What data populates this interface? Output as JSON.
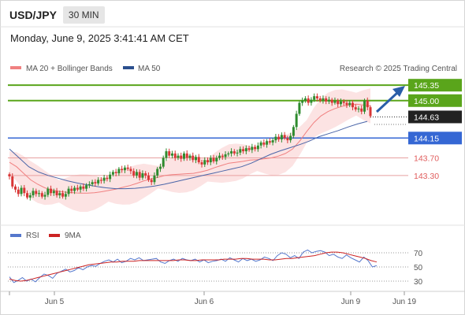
{
  "header": {
    "symbol": "USD/JPY",
    "timeframe": "30 MIN",
    "datetime": "Monday, June 9, 2025 3:41:41 AM CET"
  },
  "legend": {
    "ma20_label": "MA 20 + Bollinger Bands",
    "ma50_label": "MA 50",
    "credit": "Research © 2025 Trading Central",
    "rsi_label": "RSI",
    "ma9_label": "9MA"
  },
  "colors": {
    "up_candle": "#2e8b2e",
    "down_candle": "#d93636",
    "resistance": "#5aa51b",
    "support_level": "#3567d4",
    "target_red": "#e05c5c",
    "ma20": "#f08080",
    "ma50": "#4a65a8",
    "bollinger_fill": "#fbd9d9",
    "arrow": "#2a5ea8",
    "rsi": "#5577cc",
    "ma9": "#cc2222"
  },
  "chart_data": [
    {
      "type": "candlestick",
      "title": "USD/JPY 30 MIN",
      "ylim": [
        142.6,
        145.55
      ],
      "x_ticks": [
        "Jun 5",
        "Jun 6",
        "Jun 9",
        "Jun 19"
      ],
      "last_price": 144.63,
      "levels": [
        {
          "value": 145.35,
          "label": "145.35",
          "kind": "resistance"
        },
        {
          "value": 145.0,
          "label": "145.00",
          "kind": "resistance"
        },
        {
          "value": 144.63,
          "label": "144.63",
          "kind": "last"
        },
        {
          "value": 144.15,
          "label": "144.15",
          "kind": "pivot"
        },
        {
          "value": 143.7,
          "label": "143.70",
          "kind": "support"
        },
        {
          "value": 143.3,
          "label": "143.30",
          "kind": "support"
        }
      ],
      "closes": [
        143.28,
        143.05,
        142.98,
        142.88,
        143.02,
        142.9,
        142.8,
        142.85,
        142.95,
        142.88,
        142.9,
        142.82,
        142.86,
        143.0,
        142.9,
        142.95,
        142.85,
        142.9,
        142.82,
        142.88,
        143.0,
        142.95,
        143.02,
        142.98,
        143.05,
        143.0,
        143.08,
        143.1,
        143.15,
        143.12,
        143.2,
        143.18,
        143.25,
        143.22,
        143.32,
        143.38,
        143.35,
        143.45,
        143.42,
        143.48,
        143.45,
        143.4,
        143.3,
        143.38,
        143.25,
        143.35,
        143.3,
        143.2,
        143.15,
        143.3,
        143.45,
        143.5,
        143.7,
        143.85,
        143.75,
        143.8,
        143.7,
        143.75,
        143.68,
        143.8,
        143.7,
        143.75,
        143.65,
        143.72,
        143.6,
        143.55,
        143.65,
        143.6,
        143.7,
        143.62,
        143.7,
        143.75,
        143.72,
        143.78,
        143.8,
        143.85,
        143.8,
        143.82,
        143.9,
        143.85,
        143.92,
        143.88,
        143.95,
        143.9,
        143.98,
        144.05,
        144.0,
        144.08,
        144.05,
        144.1,
        144.18,
        144.12,
        144.22,
        144.15,
        144.1,
        144.2,
        144.4,
        144.7,
        144.95,
        145.0,
        145.05,
        144.95,
        145.02,
        145.1,
        145.05,
        145.0,
        145.05,
        144.98,
        145.02,
        144.95,
        145.0,
        144.92,
        144.98,
        144.95,
        144.9,
        144.95,
        144.85,
        144.8,
        144.82,
        144.75,
        145.0,
        144.85,
        144.65
      ],
      "series": [
        {
          "name": "MA 20 + Bollinger Bands",
          "values": [
            143.6,
            143.5,
            143.35,
            143.2,
            143.1,
            143.02,
            142.97,
            142.94,
            142.92,
            142.91,
            142.9,
            142.9,
            142.91,
            142.93,
            142.96,
            142.99,
            143.03,
            143.07,
            143.12,
            143.18,
            143.22,
            143.26,
            143.3,
            143.32,
            143.33,
            143.34,
            143.35,
            143.38,
            143.42,
            143.48,
            143.53,
            143.58,
            143.6,
            143.62,
            143.65,
            143.66,
            143.68,
            143.7,
            143.74,
            143.8,
            143.9,
            144.08,
            144.3,
            144.5,
            144.65,
            144.75,
            144.82,
            144.87,
            144.9,
            144.92,
            144.9,
            144.88
          ]
        },
        {
          "name": "MA 50",
          "values": [
            143.9,
            143.7,
            143.5,
            143.38,
            143.3,
            143.24,
            143.18,
            143.13,
            143.09,
            143.05,
            143.02,
            143.0,
            143.0,
            143.01,
            143.03,
            143.06,
            143.1,
            143.15,
            143.2,
            143.25,
            143.3,
            143.35,
            143.4,
            143.45,
            143.5,
            143.58,
            143.68,
            143.78,
            143.86,
            143.93,
            144.0,
            144.08,
            144.18,
            144.25,
            144.32,
            144.4,
            144.47,
            144.53
          ]
        }
      ]
    },
    {
      "type": "line",
      "title": "RSI",
      "ylim": [
        20,
        80
      ],
      "y_ticks": [
        70,
        50,
        30
      ],
      "series": [
        {
          "name": "RSI",
          "values": [
            36,
            28,
            31,
            35,
            30,
            33,
            29,
            35,
            40,
            38,
            34,
            41,
            44,
            47,
            43,
            45,
            49,
            46,
            50,
            52,
            51,
            55,
            58,
            60,
            57,
            61,
            56,
            58,
            62,
            60,
            63,
            59,
            60,
            61,
            62,
            57,
            55,
            59,
            61,
            58,
            62,
            60,
            59,
            61,
            57,
            60,
            56,
            58,
            59,
            61,
            58,
            63,
            60,
            57,
            62,
            59,
            61,
            58,
            60,
            64,
            62,
            59,
            66,
            70,
            68,
            63,
            66,
            62,
            71,
            74,
            70,
            72,
            73,
            71,
            66,
            68,
            64,
            62,
            67,
            63,
            60,
            57,
            64,
            59,
            50,
            52
          ]
        },
        {
          "name": "9MA",
          "values": [
            33,
            31,
            30,
            31,
            33,
            35,
            37,
            39,
            41,
            43,
            45,
            47,
            49,
            51,
            53,
            54,
            55,
            56,
            57,
            57,
            58,
            58,
            58,
            59,
            59,
            59,
            59,
            59,
            59,
            59,
            60,
            60,
            59,
            59,
            60,
            60,
            60,
            60,
            61,
            61,
            61,
            62,
            62,
            61,
            61,
            61,
            60,
            60,
            61,
            62,
            62,
            63,
            64,
            65,
            66,
            68,
            70,
            71,
            71,
            70,
            68,
            66,
            64,
            62,
            59,
            57
          ]
        }
      ]
    }
  ]
}
